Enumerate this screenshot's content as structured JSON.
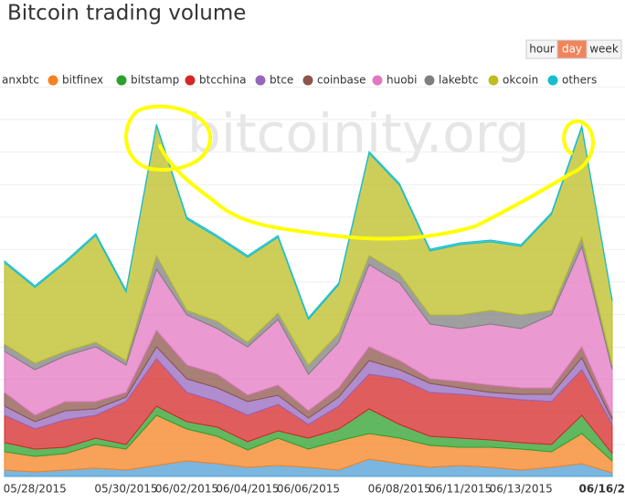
{
  "chart_data": {
    "type": "stacked-area",
    "title": "Bitcoin trading volume",
    "watermark": "bitcoinity.org",
    "buttons": [
      "hour",
      "day",
      "week"
    ],
    "active_button": "day",
    "categories": [
      null,
      "05/28/2015",
      null,
      null,
      "05/30/2015",
      null,
      "06/02/2015",
      null,
      "06/04/2015",
      null,
      "06/06/2015",
      null,
      null,
      "06/08/2015",
      null,
      "06/11/2015",
      null,
      "06/13/2015",
      null,
      null,
      "06/16/2"
    ],
    "ylim": [
      0,
      427
    ],
    "grid": true,
    "series": [
      {
        "name": "anxbtc",
        "color": "#4e9ed6",
        "values": [
          7,
          5,
          7,
          9,
          7,
          12,
          17,
          14,
          10,
          12,
          10,
          7,
          19,
          14,
          10,
          12,
          10,
          7,
          10,
          14,
          4
        ]
      },
      {
        "name": "bitfinex",
        "color": "#f58220",
        "values": [
          20,
          17,
          18,
          26,
          23,
          55,
          35,
          30,
          19,
          30,
          20,
          32,
          28,
          28,
          24,
          20,
          22,
          23,
          17,
          33,
          13
        ]
      },
      {
        "name": "bitstamp",
        "color": "#2ca02c",
        "values": [
          10,
          8,
          7,
          7,
          5,
          10,
          8,
          10,
          9,
          8,
          12,
          13,
          27,
          15,
          10,
          10,
          8,
          7,
          8,
          20,
          8
        ]
      },
      {
        "name": "btcchina",
        "color": "#d62728",
        "values": [
          30,
          22,
          30,
          25,
          47,
          52,
          32,
          28,
          29,
          29,
          15,
          25,
          38,
          50,
          48,
          48,
          47,
          47,
          47,
          50,
          32
        ]
      },
      {
        "name": "btce",
        "color": "#9467bd",
        "values": [
          10,
          8,
          10,
          7,
          5,
          13,
          15,
          15,
          15,
          10,
          7,
          10,
          15,
          10,
          10,
          7,
          5,
          6,
          8,
          13,
          5
        ]
      },
      {
        "name": "coinbase",
        "color": "#8c564b",
        "values": [
          15,
          7,
          10,
          8,
          5,
          18,
          15,
          15,
          7,
          11,
          8,
          10,
          15,
          10,
          5,
          7,
          8,
          7,
          7,
          12,
          5
        ]
      },
      {
        "name": "huobi",
        "color": "#e377c2",
        "values": [
          45,
          50,
          50,
          60,
          30,
          67,
          55,
          50,
          53,
          72,
          40,
          50,
          90,
          85,
          60,
          58,
          67,
          65,
          80,
          110,
          50
        ]
      },
      {
        "name": "lakebtc",
        "color": "#7f7f7f",
        "values": [
          8,
          7,
          5,
          5,
          5,
          15,
          5,
          8,
          5,
          7,
          10,
          10,
          10,
          10,
          10,
          15,
          15,
          15,
          5,
          10,
          5
        ]
      },
      {
        "name": "okcoin",
        "color": "#bcbd22",
        "values": [
          89,
          83,
          97,
          117,
          75,
          142,
          100,
          92,
          93,
          83,
          50,
          53,
          112,
          97,
          70,
          77,
          75,
          75,
          105,
          120,
          70
        ]
      },
      {
        "name": "others",
        "color": "#17becf",
        "values": [
          2,
          2,
          2,
          2,
          2,
          2,
          2,
          2,
          2,
          2,
          2,
          2,
          2,
          2,
          2,
          2,
          2,
          2,
          2,
          2,
          2
        ]
      }
    ]
  }
}
